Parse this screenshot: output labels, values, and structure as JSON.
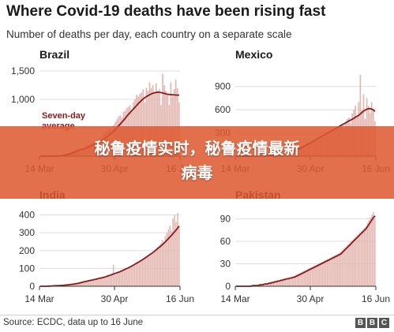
{
  "title": "Where Covid-19 deaths have been rising fast",
  "subtitle": "Number of deaths per day, each country on a separate scale",
  "banner": {
    "line1": "秘鲁疫情实时，秘鲁疫情最新",
    "line2": "病毒"
  },
  "source": "Source: ECDC, data up to 16 June",
  "logo": [
    "B",
    "B",
    "C"
  ],
  "colors": {
    "bar": "#e3b6b0",
    "line": "#8b1a1a",
    "grid": "#dddddd",
    "axis": "#333333",
    "banner": "#de5830"
  },
  "chart_data": [
    {
      "type": "bar",
      "title": "Brazil",
      "ylim": [
        0,
        1500
      ],
      "yticks": [
        0,
        500,
        1000,
        1500
      ],
      "ytick_labels": [
        "",
        "",
        "1,000",
        "1,500"
      ],
      "xtick_labels": [
        "14 Mar",
        "30 Apr",
        "16 Jun"
      ],
      "annotation": "Seven-day average",
      "daily": [
        0,
        0,
        0,
        0,
        0,
        0,
        0,
        0,
        0,
        2,
        4,
        6,
        12,
        18,
        22,
        30,
        40,
        45,
        60,
        70,
        90,
        100,
        110,
        120,
        130,
        140,
        120,
        150,
        180,
        200,
        210,
        220,
        240,
        260,
        230,
        280,
        300,
        330,
        360,
        390,
        420,
        450,
        480,
        500,
        430,
        550,
        600,
        650,
        700,
        720,
        680,
        780,
        800,
        850,
        870,
        900,
        780,
        950,
        1000,
        1080,
        1050,
        1100,
        1120,
        1180,
        950,
        1200,
        1150,
        1300,
        1200,
        1250,
        1100,
        1280,
        1150,
        1180,
        900,
        1450,
        1250,
        1150,
        1100,
        900,
        1300,
        1050,
        1180,
        1350,
        1200,
        950
      ],
      "avg": [
        0,
        0,
        0,
        0,
        0,
        0,
        0,
        0,
        0,
        1,
        2,
        4,
        6,
        9,
        13,
        18,
        24,
        30,
        38,
        46,
        56,
        68,
        80,
        92,
        104,
        116,
        124,
        132,
        142,
        154,
        166,
        180,
        194,
        208,
        220,
        232,
        246,
        262,
        280,
        300,
        320,
        344,
        370,
        396,
        420,
        446,
        474,
        504,
        536,
        568,
        600,
        634,
        668,
        704,
        738,
        770,
        800,
        830,
        862,
        894,
        926,
        956,
        984,
        1010,
        1030,
        1050,
        1066,
        1082,
        1096,
        1108,
        1116,
        1122,
        1126,
        1124,
        1118,
        1112,
        1104,
        1096,
        1090,
        1086,
        1082,
        1080,
        1078,
        1076,
        1075,
        1074
      ]
    },
    {
      "type": "bar",
      "title": "Mexico",
      "ylim": [
        0,
        1100
      ],
      "yticks": [
        300,
        600,
        900
      ],
      "ytick_labels": [
        "300",
        "600",
        "900"
      ],
      "xtick_labels": [
        "14 Mar",
        "30 Apr",
        "16 Jun"
      ],
      "daily": [
        0,
        0,
        0,
        0,
        0,
        0,
        0,
        0,
        0,
        0,
        0,
        0,
        0,
        1,
        2,
        2,
        3,
        4,
        5,
        6,
        8,
        10,
        12,
        15,
        18,
        20,
        22,
        28,
        30,
        35,
        40,
        45,
        50,
        55,
        60,
        70,
        80,
        90,
        100,
        110,
        120,
        130,
        140,
        150,
        160,
        170,
        180,
        190,
        200,
        210,
        220,
        230,
        240,
        250,
        260,
        250,
        270,
        290,
        300,
        320,
        340,
        350,
        360,
        370,
        380,
        400,
        420,
        350,
        450,
        480,
        500,
        420,
        550,
        600,
        650,
        500,
        700,
        1050,
        600,
        800,
        480,
        750,
        650,
        560,
        700,
        600,
        450
      ],
      "avg": [
        0,
        0,
        0,
        0,
        0,
        0,
        0,
        0,
        0,
        0,
        0,
        0,
        0,
        0,
        1,
        1,
        2,
        3,
        4,
        5,
        6,
        8,
        10,
        12,
        14,
        17,
        20,
        23,
        26,
        30,
        34,
        39,
        44,
        50,
        56,
        63,
        70,
        78,
        86,
        95,
        105,
        115,
        126,
        137,
        148,
        160,
        172,
        184,
        196,
        208,
        220,
        232,
        244,
        256,
        268,
        278,
        290,
        302,
        314,
        326,
        338,
        350,
        362,
        374,
        386,
        398,
        410,
        420,
        432,
        444,
        456,
        466,
        478,
        490,
        504,
        516,
        530,
        548,
        566,
        584,
        596,
        606,
        612,
        614,
        608,
        596,
        580
      ]
    },
    {
      "type": "bar",
      "title": "India",
      "ylim": [
        0,
        420
      ],
      "yticks": [
        0,
        100,
        200,
        300,
        400
      ],
      "ytick_labels": [
        "0",
        "100",
        "200",
        "300",
        "400"
      ],
      "xtick_labels": [
        "14 Mar",
        "30 Apr",
        "16 Jun"
      ],
      "daily": [
        0,
        0,
        0,
        0,
        1,
        1,
        1,
        2,
        2,
        3,
        3,
        4,
        4,
        5,
        6,
        7,
        8,
        9,
        10,
        11,
        12,
        14,
        16,
        18,
        20,
        22,
        24,
        26,
        28,
        30,
        32,
        34,
        36,
        38,
        35,
        40,
        42,
        44,
        46,
        48,
        50,
        52,
        54,
        56,
        58,
        60,
        62,
        64,
        120,
        66,
        70,
        74,
        78,
        82,
        86,
        90,
        94,
        98,
        102,
        106,
        110,
        116,
        120,
        126,
        132,
        138,
        144,
        150,
        156,
        162,
        168,
        174,
        180,
        186,
        192,
        200,
        210,
        220,
        230,
        240,
        260,
        250,
        280,
        300,
        320,
        340,
        310,
        380,
        400,
        360,
        410,
        330
      ],
      "avg": [
        0,
        0,
        0,
        0,
        0,
        1,
        1,
        1,
        2,
        2,
        3,
        3,
        4,
        4,
        5,
        5,
        6,
        7,
        8,
        9,
        10,
        11,
        12,
        14,
        15,
        17,
        19,
        21,
        23,
        25,
        27,
        29,
        31,
        33,
        35,
        37,
        39,
        41,
        43,
        45,
        47,
        49,
        51,
        54,
        57,
        60,
        63,
        66,
        69,
        72,
        75,
        78,
        81,
        85,
        89,
        93,
        97,
        101,
        105,
        109,
        114,
        119,
        124,
        129,
        134,
        139,
        144,
        149,
        155,
        161,
        167,
        173,
        179,
        185,
        191,
        198,
        205,
        212,
        219,
        226,
        234,
        242,
        250,
        259,
        268,
        277,
        286,
        296,
        306,
        316,
        327,
        338
      ]
    },
    {
      "type": "bar",
      "title": "Pakistan",
      "ylim": [
        0,
        100
      ],
      "yticks": [
        0,
        30,
        60,
        90
      ],
      "ytick_labels": [
        "0",
        "30",
        "60",
        "90"
      ],
      "xtick_labels": [
        "14 Mar",
        "30 Apr",
        "16 Jun"
      ],
      "daily": [
        0,
        0,
        0,
        0,
        0,
        0,
        0,
        0,
        0,
        0,
        1,
        1,
        1,
        1,
        2,
        2,
        2,
        3,
        3,
        3,
        4,
        4,
        5,
        5,
        6,
        6,
        7,
        7,
        8,
        8,
        9,
        9,
        10,
        10,
        11,
        11,
        12,
        12,
        13,
        14,
        15,
        16,
        17,
        18,
        19,
        20,
        21,
        22,
        23,
        24,
        25,
        26,
        27,
        28,
        29,
        30,
        31,
        32,
        33,
        34,
        35,
        36,
        37,
        38,
        39,
        40,
        41,
        42,
        43,
        44,
        46,
        48,
        50,
        52,
        54,
        56,
        58,
        60,
        62,
        64,
        66,
        68,
        70,
        72,
        74,
        76,
        78,
        80,
        84,
        88,
        92,
        96,
        99,
        90
      ],
      "avg": [
        0,
        0,
        0,
        0,
        0,
        0,
        0,
        0,
        0,
        0,
        0,
        1,
        1,
        1,
        1,
        1,
        2,
        2,
        2,
        3,
        3,
        3,
        4,
        4,
        5,
        5,
        6,
        6,
        7,
        7,
        8,
        8,
        9,
        9,
        10,
        10,
        11,
        11,
        12,
        12,
        13,
        14,
        15,
        16,
        17,
        18,
        19,
        20,
        21,
        22,
        23,
        24,
        25,
        26,
        27,
        28,
        29,
        30,
        31,
        32,
        33,
        34,
        35,
        36,
        37,
        38,
        39,
        40,
        41,
        42,
        43,
        45,
        47,
        49,
        51,
        53,
        55,
        57,
        59,
        61,
        63,
        65,
        67,
        69,
        71,
        73,
        75,
        77,
        80,
        83,
        86,
        89,
        92,
        94
      ]
    }
  ]
}
